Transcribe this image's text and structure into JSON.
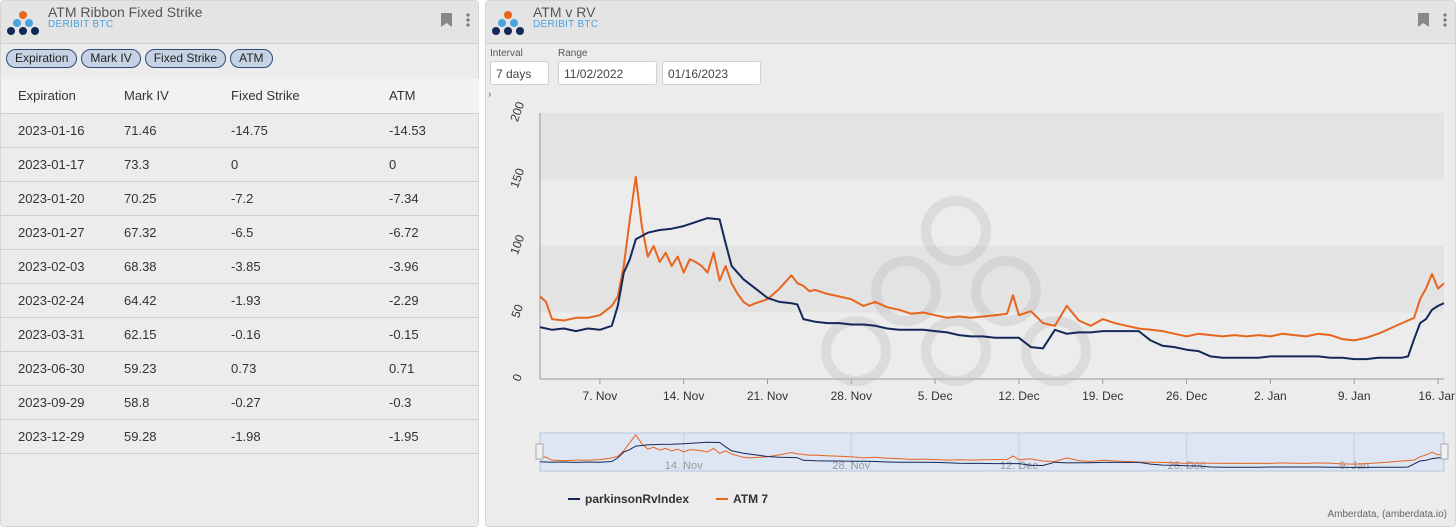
{
  "left_panel": {
    "title": "ATM Ribbon Fixed Strike",
    "subtitle": "DERIBIT BTC",
    "chips": [
      "Expiration",
      "Mark IV",
      "Fixed Strike",
      "ATM"
    ],
    "columns": [
      "Expiration",
      "Mark IV",
      "Fixed Strike",
      "ATM"
    ],
    "rows": [
      [
        "2023-01-16",
        "71.46",
        "-14.75",
        "-14.53"
      ],
      [
        "2023-01-17",
        "73.3",
        "0",
        "0"
      ],
      [
        "2023-01-20",
        "70.25",
        "-7.2",
        "-7.34"
      ],
      [
        "2023-01-27",
        "67.32",
        "-6.5",
        "-6.72"
      ],
      [
        "2023-02-03",
        "68.38",
        "-3.85",
        "-3.96"
      ],
      [
        "2023-02-24",
        "64.42",
        "-1.93",
        "-2.29"
      ],
      [
        "2023-03-31",
        "62.15",
        "-0.16",
        "-0.15"
      ],
      [
        "2023-06-30",
        "59.23",
        "0.73",
        "0.71"
      ],
      [
        "2023-09-29",
        "58.8",
        "-0.27",
        "-0.3"
      ],
      [
        "2023-12-29",
        "59.28",
        "-1.98",
        "-1.95"
      ]
    ]
  },
  "right_panel": {
    "title": "ATM v RV",
    "subtitle": "DERIBIT BTC",
    "interval_label": "Interval",
    "interval_value": "7 days",
    "range_label": "Range",
    "range_start": "11/02/2022",
    "range_end": "01/16/2023",
    "expand_glyph": "›",
    "credits": "Amberdata, (amberdata.io)"
  },
  "colors": {
    "rv": "#14285a",
    "atm": "#e8651e",
    "accent": "#4aa3e0",
    "chip_border": "#2d4a76"
  },
  "icons": [
    "logo-icon",
    "bookmark-icon",
    "menu-icon",
    "expand-icon"
  ],
  "chart_data": {
    "type": "line",
    "xlabel": "",
    "ylabel": "",
    "ylim": [
      0,
      200
    ],
    "yticks": [
      0,
      50,
      100,
      150,
      200
    ],
    "xtick_labels": [
      "7. Nov",
      "14. Nov",
      "21. Nov",
      "28. Nov",
      "5. Dec",
      "12. Dec",
      "19. Dec",
      "26. Dec",
      "2. Jan",
      "9. Jan",
      "16. Jan"
    ],
    "xtick_days": [
      5,
      12,
      19,
      26,
      33,
      40,
      47,
      54,
      61,
      68,
      75
    ],
    "navigator_labels": [
      "14. Nov",
      "28. Nov",
      "12. Dec",
      "26. Dec",
      "9. Jan"
    ],
    "navigator_days": [
      12,
      26,
      40,
      54,
      68
    ],
    "x_range_days": [
      0,
      75.5
    ],
    "legend_position": "bottom-left",
    "series": [
      {
        "name": "parkinsonRvIndex",
        "color": "#14285a",
        "x": [
          0,
          1,
          2,
          3,
          4,
          5,
          6,
          6.5,
          7,
          7.5,
          8,
          9,
          10,
          11,
          12,
          13,
          14,
          15,
          15.5,
          16,
          17,
          18,
          19,
          20,
          21,
          21.5,
          22,
          23,
          24,
          25,
          26,
          27,
          28,
          29,
          30,
          31,
          32,
          33,
          34,
          35,
          36,
          37,
          38,
          39,
          40,
          41,
          42,
          43,
          44,
          45,
          46,
          47,
          48,
          49,
          50,
          51,
          52,
          53,
          54,
          55,
          56,
          57,
          58,
          59,
          60,
          61,
          62,
          63,
          64,
          65,
          66,
          67,
          68,
          69,
          70,
          71,
          72,
          72.5,
          73,
          73.5,
          74,
          74.5,
          75,
          75.5
        ],
        "y": [
          39,
          37,
          38,
          36,
          38,
          37,
          40,
          55,
          80,
          90,
          105,
          110,
          112,
          113,
          115,
          118,
          121,
          120,
          102,
          85,
          75,
          68,
          61,
          58,
          57,
          56,
          45,
          43,
          42,
          42,
          41,
          41,
          40,
          38,
          37,
          37,
          37,
          36,
          35,
          33,
          32,
          32,
          31,
          31,
          31,
          24,
          23,
          37,
          34,
          35,
          35,
          36,
          36,
          36,
          36,
          29,
          25,
          24,
          22,
          21,
          17,
          16,
          16,
          16,
          16,
          17,
          17,
          17,
          17,
          17,
          16,
          16,
          15,
          15,
          16,
          16,
          16,
          17,
          30,
          42,
          45,
          52,
          55,
          57
        ]
      },
      {
        "name": "ATM 7",
        "color": "#e8651e",
        "x": [
          0,
          0.5,
          1,
          2,
          3,
          4,
          5,
          6,
          6.5,
          7,
          7.5,
          8,
          8.5,
          9,
          9.5,
          10,
          10.5,
          11,
          11.5,
          12,
          12.5,
          13,
          13.5,
          14,
          14.5,
          15,
          15.5,
          16,
          16.5,
          17,
          17.5,
          18,
          19,
          20,
          21,
          21.5,
          22,
          22.5,
          23,
          24,
          25,
          26,
          27,
          28,
          29,
          30,
          31,
          32,
          33,
          34,
          35,
          36,
          37,
          38,
          39,
          39.5,
          40,
          41,
          42,
          43,
          44,
          45,
          46,
          47,
          48,
          49,
          50,
          51,
          52,
          53,
          54,
          55,
          56,
          57,
          58,
          59,
          60,
          61,
          62,
          63,
          64,
          65,
          66,
          67,
          68,
          69,
          70,
          71,
          72,
          73,
          73.5,
          74,
          74.5,
          75,
          75.5
        ],
        "y": [
          62,
          58,
          45,
          44,
          46,
          46,
          48,
          55,
          62,
          85,
          120,
          152,
          115,
          92,
          100,
          88,
          95,
          85,
          92,
          80,
          90,
          88,
          85,
          80,
          95,
          74,
          85,
          72,
          64,
          58,
          55,
          57,
          60,
          68,
          78,
          72,
          70,
          66,
          67,
          64,
          62,
          60,
          55,
          58,
          54,
          52,
          49,
          50,
          48,
          46,
          47,
          46,
          47,
          48,
          49,
          63,
          48,
          51,
          42,
          40,
          55,
          44,
          40,
          45,
          42,
          40,
          38,
          37,
          36,
          34,
          32,
          34,
          33,
          32,
          33,
          32,
          33,
          32,
          34,
          33,
          32,
          34,
          33,
          30,
          29,
          31,
          34,
          38,
          42,
          46,
          60,
          68,
          79,
          68,
          72
        ]
      }
    ]
  }
}
